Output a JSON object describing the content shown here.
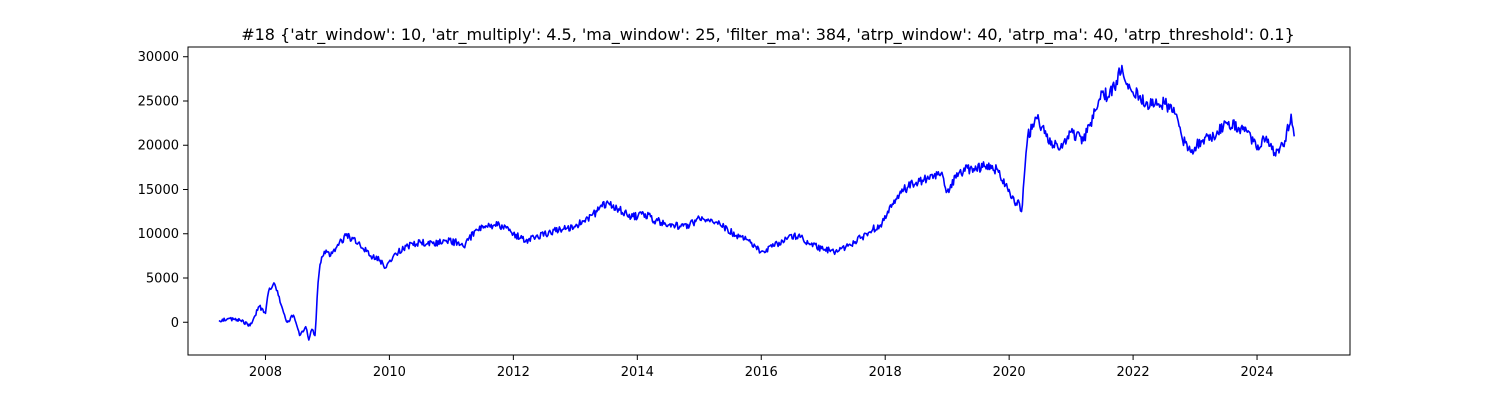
{
  "chart_data": {
    "type": "line",
    "title": "#18 {'atr_window': 10, 'atr_multiply': 4.5, 'ma_window': 25, 'filter_ma': 384, 'atrp_window': 40, 'atrp_ma': 40, 'atrp_threshold': 0.1}",
    "xlabel": "",
    "ylabel": "",
    "x_type": "year",
    "xlim": [
      2006.75,
      2025.5
    ],
    "ylim": [
      -3700,
      31100
    ],
    "x_ticks": [
      "2008",
      "2010",
      "2012",
      "2014",
      "2016",
      "2018",
      "2020",
      "2022",
      "2024"
    ],
    "y_ticks": [
      "0",
      "5000",
      "10000",
      "15000",
      "20000",
      "25000",
      "30000"
    ],
    "grid": false,
    "legend": "none",
    "series": [
      {
        "color": "#0000ff",
        "x": [
          2007.25,
          2007.4,
          2007.6,
          2007.75,
          2007.9,
          2008.0,
          2008.05,
          2008.15,
          2008.25,
          2008.35,
          2008.45,
          2008.55,
          2008.65,
          2008.7,
          2008.75,
          2008.8,
          2008.85,
          2008.88,
          2008.95,
          2009.05,
          2009.15,
          2009.3,
          2009.5,
          2009.7,
          2009.85,
          2009.95,
          2010.1,
          2010.3,
          2010.5,
          2010.7,
          2010.9,
          2011.1,
          2011.2,
          2011.4,
          2011.7,
          2011.9,
          2012.0,
          2012.2,
          2012.4,
          2012.6,
          2012.8,
          2013.0,
          2013.2,
          2013.35,
          2013.5,
          2013.7,
          2013.9,
          2014.1,
          2014.3,
          2014.5,
          2014.7,
          2014.9,
          2015.0,
          2015.2,
          2015.4,
          2015.6,
          2015.8,
          2016.0,
          2016.2,
          2016.4,
          2016.6,
          2016.8,
          2017.0,
          2017.2,
          2017.4,
          2017.6,
          2017.8,
          2017.95,
          2018.1,
          2018.3,
          2018.5,
          2018.7,
          2018.9,
          2019.0,
          2019.2,
          2019.4,
          2019.6,
          2019.8,
          2020.0,
          2020.1,
          2020.15,
          2020.2,
          2020.3,
          2020.45,
          2020.6,
          2020.8,
          2021.0,
          2021.2,
          2021.4,
          2021.5,
          2021.6,
          2021.7,
          2021.82,
          2021.95,
          2022.1,
          2022.3,
          2022.5,
          2022.7,
          2022.8,
          2022.95,
          2023.1,
          2023.3,
          2023.5,
          2023.7,
          2023.9,
          2024.0,
          2024.15,
          2024.3,
          2024.45,
          2024.55,
          2024.6
        ],
        "y": [
          200,
          400,
          200,
          -400,
          1800,
          1000,
          3500,
          4300,
          2000,
          0,
          800,
          -1500,
          -500,
          -2000,
          -800,
          -1500,
          4500,
          6500,
          8000,
          7500,
          8500,
          9800,
          9000,
          7500,
          7000,
          6200,
          7800,
          8600,
          9000,
          8900,
          9200,
          9000,
          8500,
          10500,
          11000,
          10800,
          10000,
          9200,
          9600,
          10200,
          10500,
          10800,
          11800,
          12500,
          13500,
          12800,
          11800,
          12300,
          11500,
          11000,
          10800,
          11200,
          11800,
          11600,
          10800,
          9800,
          9200,
          8000,
          8600,
          9500,
          9800,
          8800,
          8200,
          8000,
          8600,
          9500,
          10500,
          11200,
          13000,
          15000,
          15800,
          16200,
          16800,
          14800,
          17000,
          17400,
          17600,
          17300,
          15000,
          13200,
          13800,
          12500,
          21000,
          23000,
          21000,
          19500,
          21500,
          20500,
          24000,
          26000,
          25500,
          26500,
          29000,
          26500,
          25500,
          24500,
          24800,
          23500,
          20500,
          19500,
          20500,
          21000,
          22500,
          22000,
          21000,
          19500,
          21000,
          18800,
          20500,
          23500,
          21000
        ]
      }
    ]
  }
}
